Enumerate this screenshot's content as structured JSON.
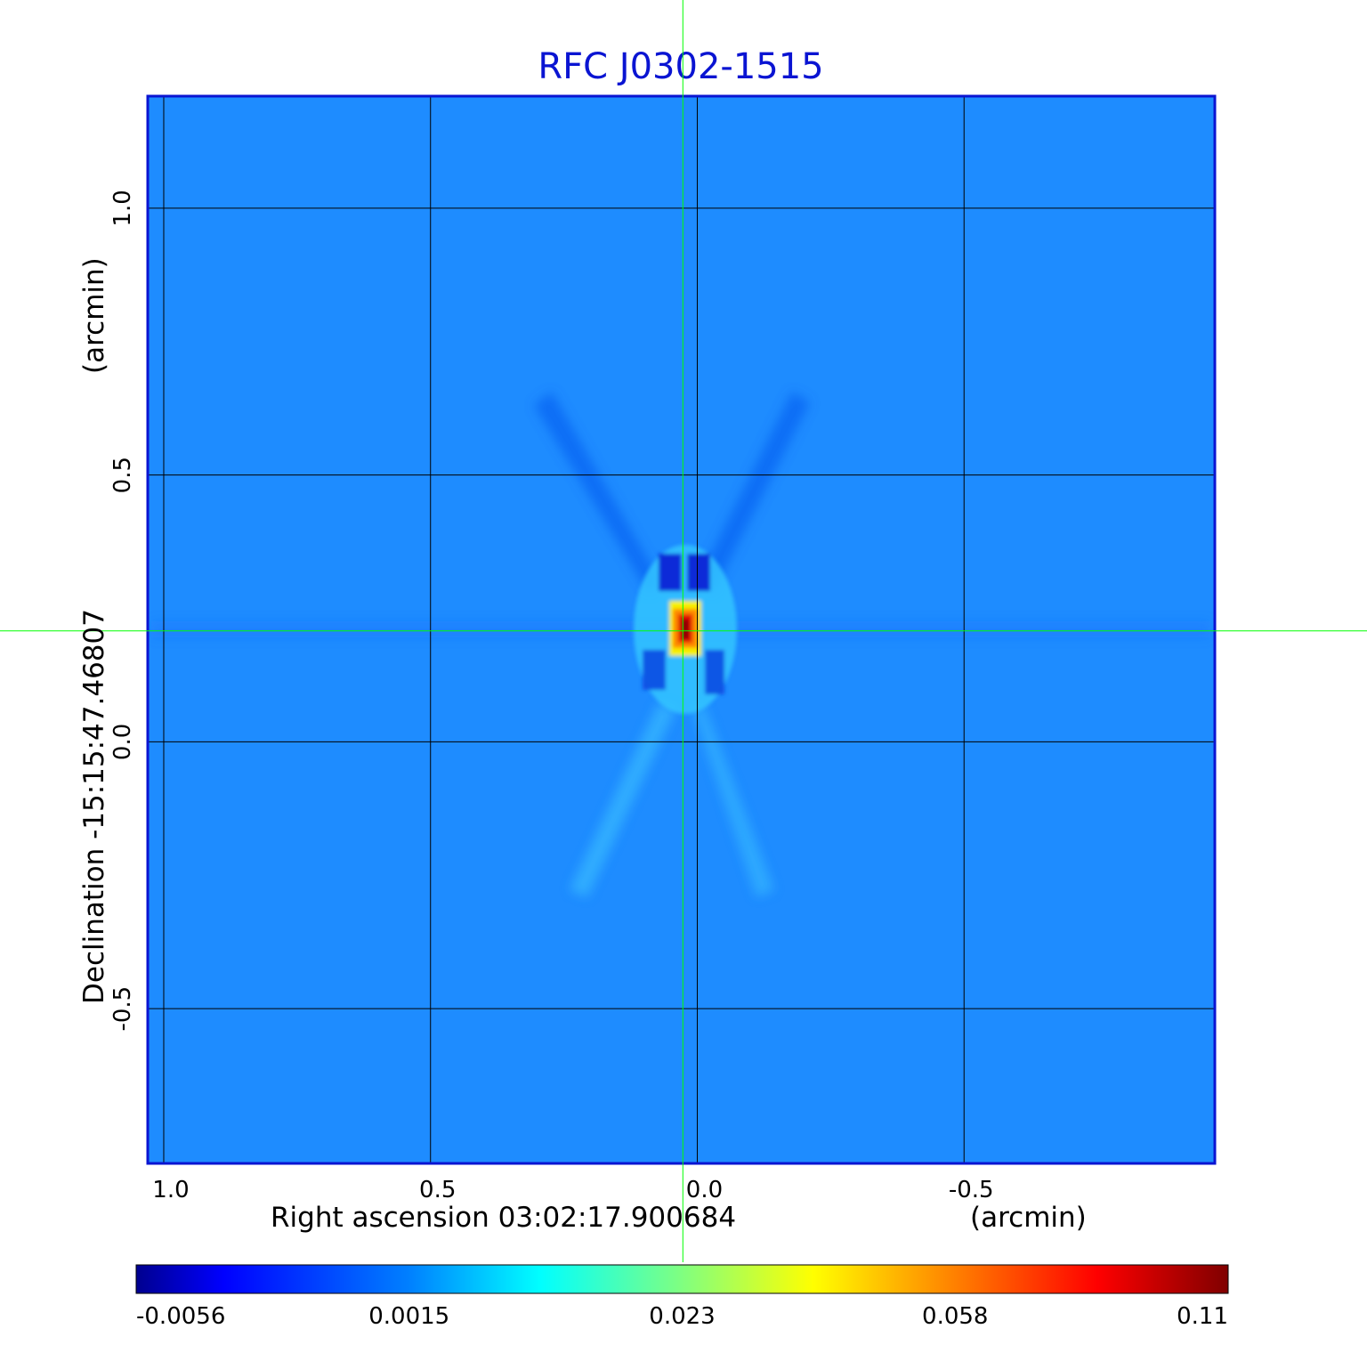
{
  "chart_data": {
    "type": "heatmap",
    "title": "RFC J0302-1515",
    "x_axis": {
      "label": "Right ascension  03:02:17.900684",
      "unit_label": "(arcmin)",
      "ticks": [
        1.0,
        0.5,
        0.0,
        -0.5
      ],
      "tick_labels": [
        "1.0",
        "0.5",
        "0.0",
        "-0.5"
      ],
      "range": [
        1.03,
        -0.97
      ],
      "reversed": true
    },
    "y_axis": {
      "label": "Declination  -15:15:47.46807",
      "unit_label": "(arcmin)",
      "ticks": [
        1.0,
        0.5,
        0.0,
        -0.5
      ],
      "tick_labels": [
        "1.0",
        "0.5",
        "0.0",
        "-0.5"
      ],
      "range": [
        -0.79,
        1.21
      ]
    },
    "grid": true,
    "crosshair": {
      "x": 0.027,
      "y": 0.208,
      "color": "#00ff00"
    },
    "source_peak": {
      "x": 0.02,
      "y": 0.21,
      "value": 0.11
    },
    "colormap": "jet",
    "colorbar": {
      "orientation": "horizontal",
      "position": "bottom",
      "tick_labels": [
        "-0.0056",
        "0.0015",
        "0.023",
        "0.058",
        "0.11"
      ],
      "range": [
        -0.0056,
        0.11
      ]
    },
    "colors": {
      "title": "#0a14d2",
      "frame": "#0a14d2",
      "background_level": "#1e8cff"
    }
  }
}
